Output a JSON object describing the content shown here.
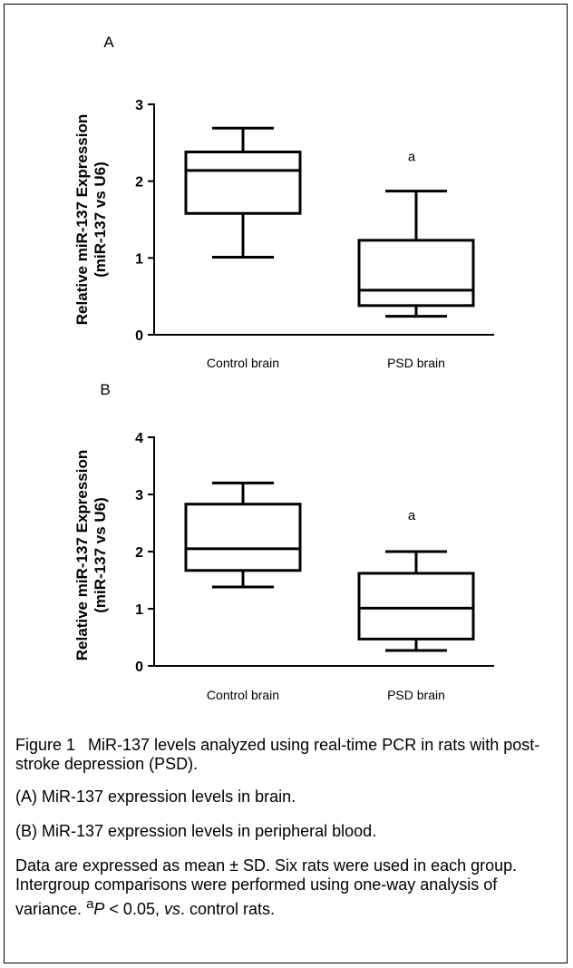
{
  "chart_data": [
    {
      "type": "box",
      "panel_label": "A",
      "ylabel_line1": "Relative miR-137 Expression",
      "ylabel_line2": "(miR-137 vs U6)",
      "ylim": [
        0,
        3
      ],
      "yticks": [
        "0",
        "1",
        "2",
        "3"
      ],
      "categories": [
        "Control brain",
        "PSD brain"
      ],
      "boxes": [
        {
          "min": 1.01,
          "q1": 1.58,
          "median": 2.14,
          "q3": 2.38,
          "max": 2.69
        },
        {
          "min": 0.24,
          "q1": 0.38,
          "median": 0.58,
          "q3": 1.23,
          "max": 1.87
        }
      ],
      "annotations": [
        "",
        "a"
      ]
    },
    {
      "type": "box",
      "panel_label": "B",
      "ylabel_line1": "Relative miR-137 Expression",
      "ylabel_line2": "(miR-137 vs U6)",
      "ylim": [
        0,
        4
      ],
      "yticks": [
        "0",
        "1",
        "2",
        "3",
        "4"
      ],
      "categories": [
        "Control brain",
        "PSD brain"
      ],
      "boxes": [
        {
          "min": 1.38,
          "q1": 1.67,
          "median": 2.05,
          "q3": 2.83,
          "max": 3.2
        },
        {
          "min": 0.27,
          "q1": 0.47,
          "median": 1.01,
          "q3": 1.62,
          "max": 2.0
        }
      ],
      "annotations": [
        "",
        "a"
      ]
    }
  ],
  "caption": {
    "fig_label": "Figure 1",
    "title": "MiR-137 levels analyzed using real-time PCR in rats with post-stroke depression (PSD).",
    "panel_a": "(A) MiR-137 expression levels in brain.",
    "panel_b": "(B) MiR-137 expression levels in peripheral blood.",
    "notes_text": "Data are expressed as mean ± SD. Six rats were used in each group. Intergroup comparisons were performed using one-way analysis of variance.",
    "sup": "a",
    "p_letter": "P",
    "p_value": " < 0.05, ",
    "vs": "vs",
    "tail": ". control rats."
  }
}
